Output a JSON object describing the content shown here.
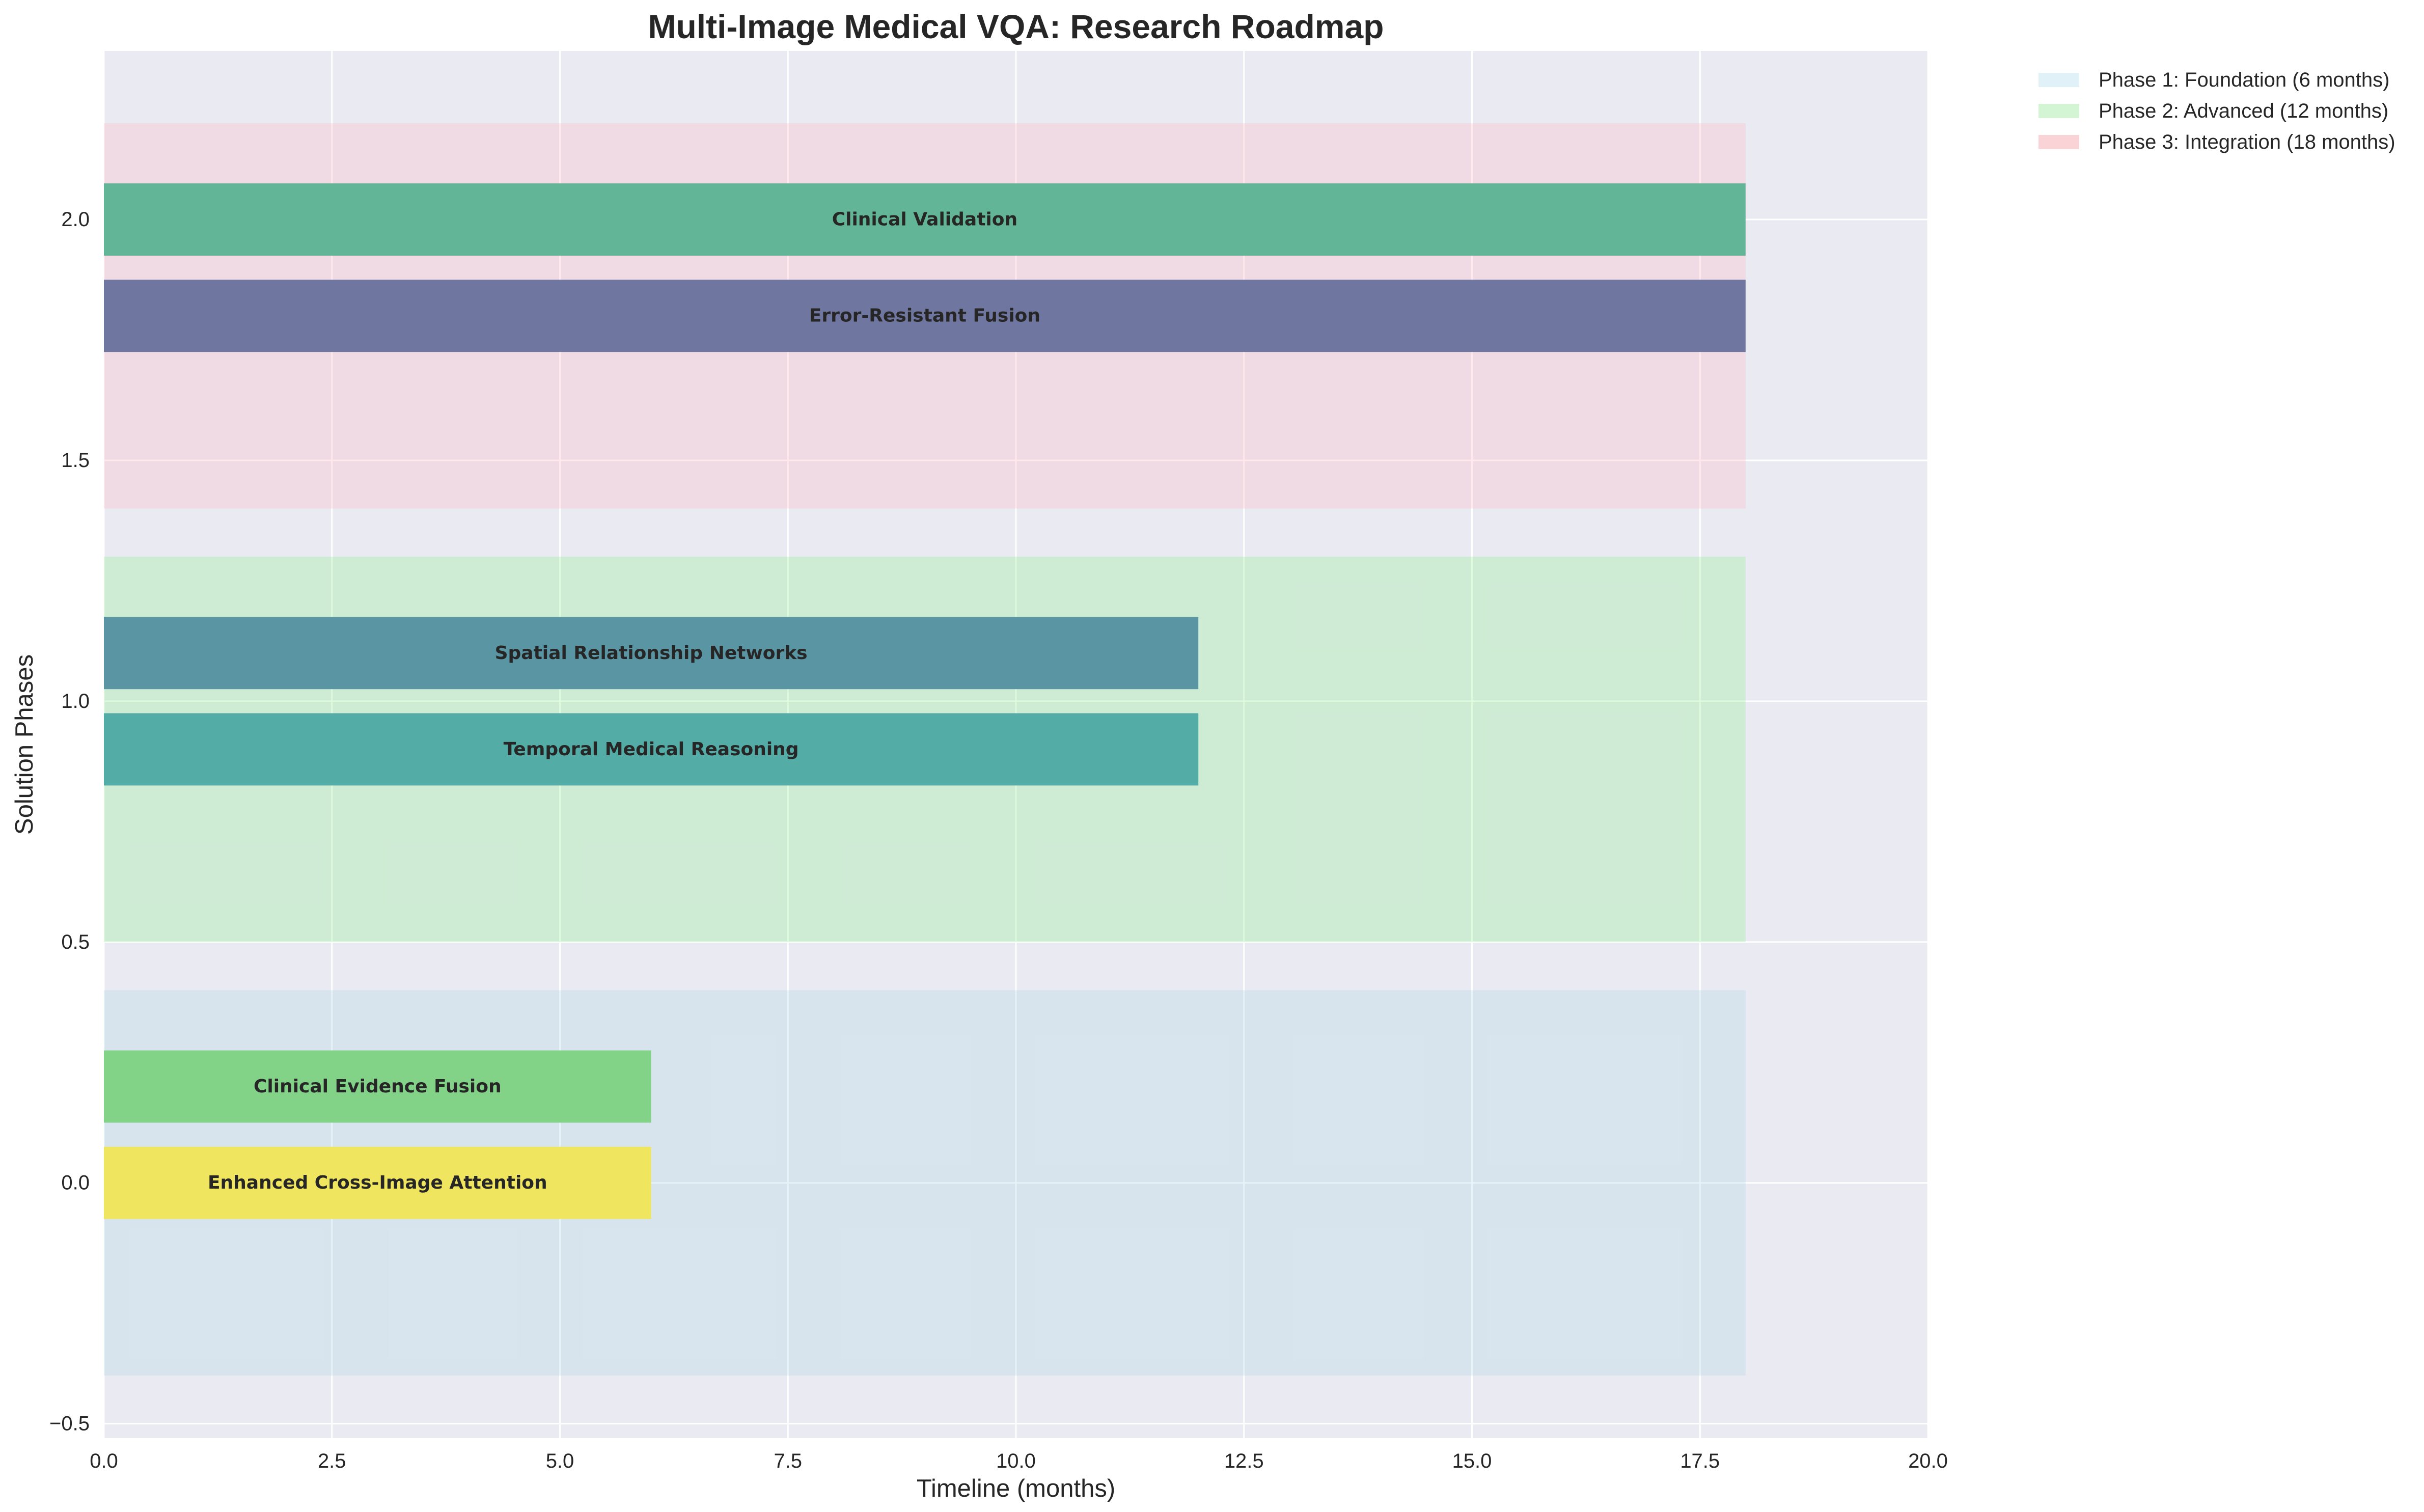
{
  "chart_data": {
    "type": "bar",
    "orientation": "horizontal",
    "title": "Multi-Image Medical VQA: Research Roadmap",
    "xlabel": "Timeline (months)",
    "ylabel": "Solution Phases",
    "xlim": [
      0,
      20
    ],
    "ylim": [
      -0.53,
      2.35
    ],
    "xticks": [
      0,
      2.5,
      5,
      7.5,
      10,
      12.5,
      15,
      17.5,
      20
    ],
    "xtick_labels": [
      "0.0",
      "2.5",
      "5.0",
      "7.5",
      "10.0",
      "12.5",
      "15.0",
      "17.5",
      "20.0"
    ],
    "yticks": [
      -0.5,
      0,
      0.5,
      1,
      1.5,
      2
    ],
    "ytick_labels": [
      "−0.5",
      "0.0",
      "0.5",
      "1.0",
      "1.5",
      "2.0"
    ],
    "grid": true,
    "legend_position": "outside-upper-right",
    "phases": [
      {
        "name": "Phase 1: Foundation (6 months)",
        "start": 0,
        "end": 18,
        "y_low": -0.4,
        "y_high": 0.4,
        "color": "#add8e6",
        "legend_color": "#e0f2f7"
      },
      {
        "name": "Phase 2: Advanced (12 months)",
        "start": 0,
        "end": 18,
        "y_low": 0.5,
        "y_high": 1.3,
        "color": "#90ee90",
        "legend_color": "#d4f5d4"
      },
      {
        "name": "Phase 3: Integration (18 months)",
        "start": 0,
        "end": 18,
        "y_low": 1.4,
        "y_high": 2.2,
        "color": "#ffb6c1",
        "legend_color": "#f9d3d5"
      }
    ],
    "tasks": [
      {
        "label": "Enhanced Cross-Image Attention",
        "start": 0,
        "end": 6,
        "y": 0.0,
        "height": 0.15,
        "color": "#f0e55f"
      },
      {
        "label": "Clinical Evidence Fusion",
        "start": 0,
        "end": 6,
        "y": 0.2,
        "height": 0.15,
        "color": "#82d288"
      },
      {
        "label": "Temporal Medical Reasoning",
        "start": 0,
        "end": 12,
        "y": 0.9,
        "height": 0.15,
        "color": "#53aca5"
      },
      {
        "label": "Spatial Relationship Networks",
        "start": 0,
        "end": 12,
        "y": 1.1,
        "height": 0.15,
        "color": "#5a95a3"
      },
      {
        "label": "Error-Resistant Fusion",
        "start": 0,
        "end": 18,
        "y": 1.8,
        "height": 0.15,
        "color": "#6f76a0"
      },
      {
        "label": "Clinical Validation",
        "start": 0,
        "end": 18,
        "y": 2.0,
        "height": 0.15,
        "color": "#62b697"
      }
    ]
  }
}
